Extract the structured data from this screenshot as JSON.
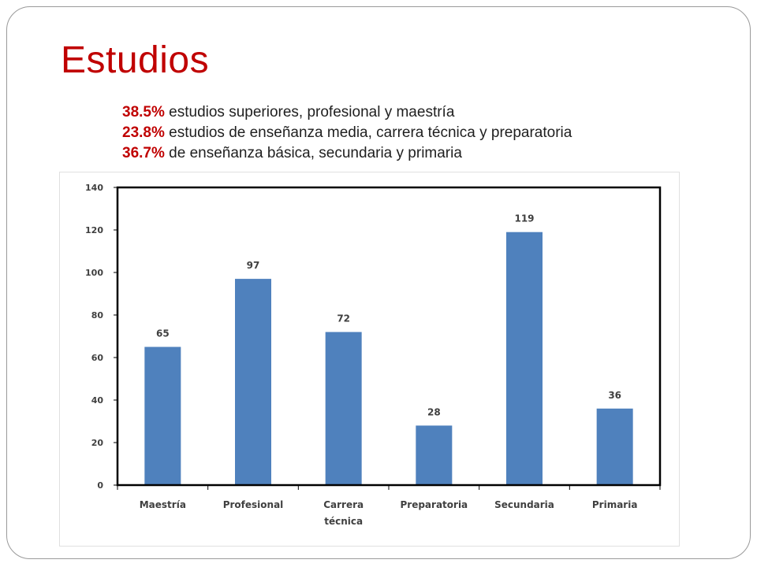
{
  "slide": {
    "title": "Estudios",
    "stats": [
      {
        "percent": "38.5%",
        "text": "estudios superiores, profesional y maestría"
      },
      {
        "percent": "23.8%",
        "text": "estudios de enseñanza media, carrera técnica y preparatoria"
      },
      {
        "percent": "36.7%",
        "text": "de enseñanza básica, secundaria y primaria"
      }
    ]
  },
  "chart_data": {
    "type": "bar",
    "categories": [
      "Maestría",
      "Profesional",
      "Carrera técnica",
      "Preparatoria",
      "Secundaria",
      "Primaria"
    ],
    "values": [
      65,
      97,
      72,
      28,
      119,
      36
    ],
    "ylim": [
      0,
      140
    ],
    "yticks": [
      0,
      20,
      40,
      60,
      80,
      100,
      120,
      140
    ],
    "grid": false,
    "data_labels": true,
    "bar_color": "#4f81bd",
    "title": "",
    "xlabel": "",
    "ylabel": ""
  },
  "colors": {
    "accent": "#c00000",
    "bar": "#4f81bd"
  }
}
